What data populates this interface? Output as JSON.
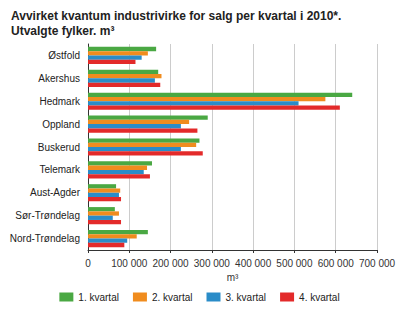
{
  "chart_data": {
    "type": "bar",
    "orientation": "horizontal",
    "title": "Avvirket kvantum industrivirke for salg per kvartal i 2010*. Utvalgte fylker. m³",
    "xlabel": "m³",
    "categories": [
      "Østfold",
      "Akershus",
      "Hedmark",
      "Oppland",
      "Buskerud",
      "Telemark",
      "Aust-Agder",
      "Sør-Trøndelag",
      "Nord-Trøndelag"
    ],
    "series": [
      {
        "name": "1. kvartal",
        "color": "#4aa843",
        "values": [
          165000,
          170000,
          640000,
          290000,
          270000,
          155000,
          68000,
          65000,
          145000
        ]
      },
      {
        "name": "2. kvartal",
        "color": "#f08c1e",
        "values": [
          145000,
          178000,
          575000,
          245000,
          262000,
          143000,
          78000,
          75000,
          118000
        ]
      },
      {
        "name": "3. kvartal",
        "color": "#2a8cc8",
        "values": [
          130000,
          162000,
          510000,
          225000,
          225000,
          135000,
          75000,
          60000,
          95000
        ]
      },
      {
        "name": "4. kvartal",
        "color": "#e32a2a",
        "values": [
          115000,
          175000,
          610000,
          265000,
          278000,
          150000,
          80000,
          80000,
          88000
        ]
      }
    ],
    "xlim": [
      0,
      700000
    ],
    "xticks": [
      0,
      {
        "value": 100000,
        "label": "100 000"
      },
      {
        "value": 200000,
        "label": "200 000"
      },
      {
        "value": 300000,
        "label": "300 000"
      },
      {
        "value": 400000,
        "label": "400 000"
      },
      {
        "value": 500000,
        "label": "500 000"
      },
      {
        "value": 600000,
        "label": "600 000"
      },
      {
        "value": 700000,
        "label": "700 000"
      }
    ],
    "grid": true,
    "legend": "bottom"
  }
}
